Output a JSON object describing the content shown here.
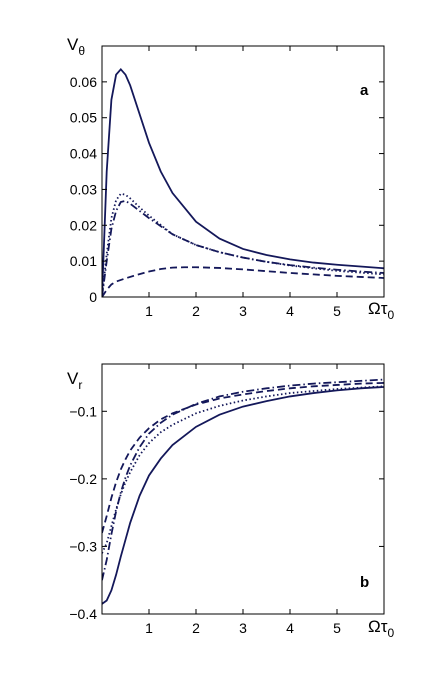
{
  "colors": {
    "series": "#14185a",
    "axis": "#000000"
  },
  "chart_data": [
    {
      "type": "line",
      "panel_label": "a",
      "ylabel_main": "V",
      "ylabel_sub": "θ",
      "xlabel_main": "Ωτ",
      "xlabel_sub": "0",
      "xlim": [
        0,
        6
      ],
      "ylim": [
        0,
        0.07
      ],
      "xticks": [
        1,
        2,
        3,
        4,
        5
      ],
      "yticks": [
        0,
        0.01,
        0.02,
        0.03,
        0.04,
        0.05,
        0.06
      ],
      "ytick_labels": [
        "0",
        "0.01",
        "0.02",
        "0.03",
        "0.04",
        "0.05",
        "0.06"
      ],
      "series": [
        {
          "style": "solid",
          "x": [
            0,
            0.1,
            0.2,
            0.3,
            0.4,
            0.5,
            0.6,
            0.8,
            1.0,
            1.25,
            1.5,
            2.0,
            2.5,
            3.0,
            3.5,
            4.0,
            4.5,
            5.0,
            5.5,
            6.0
          ],
          "y": [
            0,
            0.035,
            0.055,
            0.062,
            0.0635,
            0.062,
            0.059,
            0.051,
            0.043,
            0.035,
            0.029,
            0.021,
            0.0163,
            0.0134,
            0.0117,
            0.0105,
            0.0096,
            0.009,
            0.0085,
            0.008
          ]
        },
        {
          "style": "dotted",
          "x": [
            0,
            0.1,
            0.2,
            0.3,
            0.4,
            0.5,
            0.6,
            0.8,
            1.0,
            1.5,
            2.0,
            2.5,
            3.0,
            3.5,
            4.0,
            4.5,
            5.0,
            5.5,
            6.0
          ],
          "y": [
            0,
            0.012,
            0.022,
            0.027,
            0.0288,
            0.0285,
            0.0275,
            0.025,
            0.0227,
            0.0175,
            0.0145,
            0.0125,
            0.011,
            0.0098,
            0.0088,
            0.008,
            0.0073,
            0.0068,
            0.0063
          ]
        },
        {
          "style": "dashdot",
          "x": [
            0,
            0.1,
            0.2,
            0.3,
            0.4,
            0.5,
            0.6,
            0.8,
            1.0,
            1.5,
            2.0,
            2.5,
            3.0,
            3.5,
            4.0,
            4.5,
            5.0,
            5.5,
            6.0
          ],
          "y": [
            0,
            0.01,
            0.019,
            0.024,
            0.0265,
            0.0268,
            0.026,
            0.024,
            0.022,
            0.0175,
            0.0145,
            0.0125,
            0.011,
            0.0098,
            0.0089,
            0.0082,
            0.0076,
            0.0071,
            0.0067
          ]
        },
        {
          "style": "dashed",
          "x": [
            0,
            0.1,
            0.2,
            0.3,
            0.5,
            0.75,
            1.0,
            1.25,
            1.5,
            1.75,
            2.0,
            2.5,
            3.0,
            3.5,
            4.0,
            4.5,
            5.0,
            5.5,
            6.0
          ],
          "y": [
            0,
            0.002,
            0.0035,
            0.0043,
            0.0052,
            0.0062,
            0.0071,
            0.0078,
            0.0082,
            0.0083,
            0.0083,
            0.0081,
            0.0077,
            0.0072,
            0.0067,
            0.0063,
            0.0059,
            0.0056,
            0.0053
          ]
        }
      ]
    },
    {
      "type": "line",
      "panel_label": "b",
      "ylabel_main": "V",
      "ylabel_sub": "r",
      "xlabel_main": "Ωτ",
      "xlabel_sub": "0",
      "xlim": [
        0,
        6
      ],
      "ylim": [
        -0.4,
        -0.03
      ],
      "xticks": [
        1,
        2,
        3,
        4,
        5
      ],
      "yticks": [
        -0.1,
        -0.2,
        -0.3,
        -0.4
      ],
      "ytick_labels": [
        "−0.1",
        "−0.2",
        "−0.3",
        "−0.4"
      ],
      "series": [
        {
          "style": "solid",
          "x": [
            0,
            0.1,
            0.2,
            0.3,
            0.4,
            0.5,
            0.6,
            0.8,
            1.0,
            1.25,
            1.5,
            2.0,
            2.5,
            3.0,
            3.5,
            4.0,
            4.5,
            5.0,
            5.5,
            6.0
          ],
          "y": [
            -0.385,
            -0.38,
            -0.365,
            -0.342,
            -0.315,
            -0.29,
            -0.265,
            -0.225,
            -0.195,
            -0.17,
            -0.15,
            -0.123,
            -0.105,
            -0.093,
            -0.085,
            -0.078,
            -0.073,
            -0.069,
            -0.066,
            -0.064
          ]
        },
        {
          "style": "dotted",
          "x": [
            0,
            0.1,
            0.2,
            0.3,
            0.4,
            0.5,
            0.6,
            0.8,
            1.0,
            1.25,
            1.5,
            2.0,
            2.5,
            3.0,
            3.5,
            4.0,
            4.5,
            5.0,
            5.5,
            6.0
          ],
          "y": [
            -0.31,
            -0.295,
            -0.27,
            -0.245,
            -0.223,
            -0.205,
            -0.19,
            -0.165,
            -0.147,
            -0.131,
            -0.12,
            -0.103,
            -0.092,
            -0.084,
            -0.078,
            -0.073,
            -0.07,
            -0.067,
            -0.065,
            -0.063
          ]
        },
        {
          "style": "dashdot",
          "x": [
            0,
            0.1,
            0.2,
            0.3,
            0.4,
            0.5,
            0.6,
            0.8,
            1.0,
            1.25,
            1.5,
            2.0,
            2.5,
            3.0,
            3.5,
            4.0,
            4.5,
            5.0,
            5.5,
            6.0
          ],
          "y": [
            -0.35,
            -0.32,
            -0.282,
            -0.248,
            -0.22,
            -0.198,
            -0.18,
            -0.153,
            -0.133,
            -0.117,
            -0.105,
            -0.089,
            -0.078,
            -0.071,
            -0.066,
            -0.062,
            -0.059,
            -0.057,
            -0.055,
            -0.053
          ]
        },
        {
          "style": "dashed",
          "x": [
            0,
            0.1,
            0.2,
            0.3,
            0.4,
            0.5,
            0.6,
            0.8,
            1.0,
            1.25,
            1.5,
            2.0,
            2.5,
            3.0,
            3.5,
            4.0,
            4.5,
            5.0,
            5.5,
            6.0
          ],
          "y": [
            -0.28,
            -0.255,
            -0.228,
            -0.205,
            -0.186,
            -0.171,
            -0.158,
            -0.139,
            -0.125,
            -0.112,
            -0.103,
            -0.09,
            -0.081,
            -0.075,
            -0.07,
            -0.066,
            -0.063,
            -0.061,
            -0.059,
            -0.058
          ]
        }
      ]
    }
  ]
}
